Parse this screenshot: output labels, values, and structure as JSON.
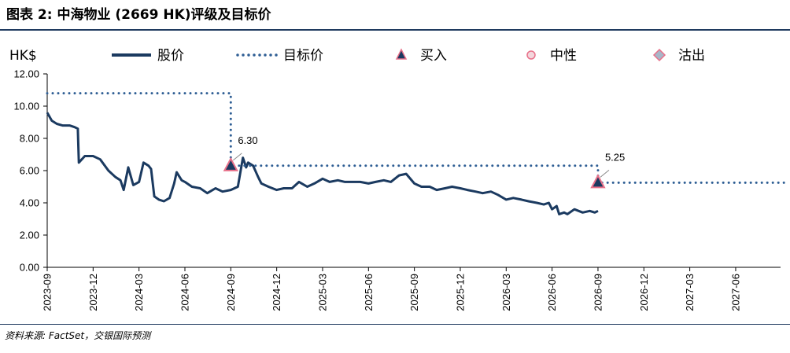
{
  "title": "图表 2: 中海物业 (2669 HK)评级及目标价",
  "source": "资料来源: FactSet，交银国际预测",
  "colors": {
    "price": "#1b3a60",
    "target": "#2e5e94",
    "marker_fill": "#a8b6c8",
    "marker_stroke": "#e8718a",
    "axis": "#000000"
  },
  "chart_data": {
    "type": "line",
    "ylabel": "HK$",
    "ylim": [
      0,
      12
    ],
    "yticks": [
      "0.00",
      "2.00",
      "4.00",
      "6.00",
      "8.00",
      "10.00",
      "12.00"
    ],
    "xlim": [
      "2023-09",
      "2027-09"
    ],
    "xticks": [
      "2023-09",
      "2023-12",
      "2024-03",
      "2024-06",
      "2024-09",
      "2024-12",
      "2025-03",
      "2025-06",
      "2025-09",
      "2025-12",
      "2026-03",
      "2026-06",
      "2026-09",
      "2026-12",
      "2027-03",
      "2027-06"
    ],
    "legend": [
      "股价",
      "目标价",
      "买入",
      "中性",
      "沽出"
    ],
    "legend_position": "top",
    "series": [
      {
        "name": "股价",
        "style": "solid",
        "x": [
          "2023-09-01",
          "2023-09-10",
          "2023-09-20",
          "2023-10-01",
          "2023-10-15",
          "2023-10-25",
          "2023-11-01",
          "2023-11-03",
          "2023-11-15",
          "2023-12-01",
          "2023-12-15",
          "2024-01-01",
          "2024-01-15",
          "2024-01-25",
          "2024-02-01",
          "2024-02-10",
          "2024-02-20",
          "2024-03-01",
          "2024-03-10",
          "2024-03-20",
          "2024-03-25",
          "2024-04-01",
          "2024-04-10",
          "2024-04-20",
          "2024-05-01",
          "2024-05-10",
          "2024-05-15",
          "2024-05-25",
          "2024-06-01",
          "2024-06-15",
          "2024-07-01",
          "2024-07-15",
          "2024-08-01",
          "2024-08-15",
          "2024-09-01",
          "2024-09-15",
          "2024-09-25",
          "2024-10-01",
          "2024-10-05",
          "2024-10-15",
          "2024-10-25",
          "2024-11-01",
          "2024-11-15",
          "2024-12-01",
          "2024-12-15",
          "2025-01-01",
          "2025-01-15",
          "2025-02-01",
          "2025-02-15",
          "2025-03-01",
          "2025-03-15",
          "2025-04-01",
          "2025-04-15",
          "2025-05-01",
          "2025-05-15",
          "2025-06-01",
          "2025-06-15",
          "2025-07-01",
          "2025-07-15",
          "2025-08-01",
          "2025-08-15",
          "2025-09-01",
          "2025-09-15",
          "2025-10-01",
          "2025-10-15",
          "2025-11-01",
          "2025-11-15",
          "2025-12-01",
          "2025-12-15",
          "2026-01-01",
          "2026-01-15",
          "2026-02-01",
          "2026-02-15",
          "2026-03-01",
          "2026-03-15",
          "2026-04-01",
          "2026-04-15",
          "2026-05-01",
          "2026-05-15",
          "2026-05-25",
          "2026-06-01",
          "2026-06-10",
          "2026-06-15",
          "2026-06-25",
          "2026-07-01",
          "2026-07-15",
          "2026-08-01",
          "2026-08-15",
          "2026-08-25",
          "2026-09-01"
        ],
        "values": [
          9.6,
          9.1,
          8.9,
          8.8,
          8.8,
          8.7,
          8.6,
          6.5,
          6.9,
          6.9,
          6.7,
          6.0,
          5.6,
          5.4,
          4.8,
          6.2,
          5.1,
          5.3,
          6.5,
          6.3,
          6.1,
          4.4,
          4.2,
          4.1,
          4.3,
          5.2,
          5.9,
          5.4,
          5.3,
          5.0,
          4.9,
          4.6,
          4.9,
          4.7,
          4.8,
          5.0,
          6.8,
          6.2,
          6.5,
          6.3,
          5.6,
          5.2,
          5.0,
          4.8,
          4.9,
          4.9,
          5.3,
          5.0,
          5.2,
          5.5,
          5.3,
          5.4,
          5.3,
          5.3,
          5.3,
          5.2,
          5.3,
          5.4,
          5.3,
          5.7,
          5.8,
          5.2,
          5.0,
          5.0,
          4.8,
          4.9,
          5.0,
          4.9,
          4.8,
          4.7,
          4.6,
          4.7,
          4.5,
          4.2,
          4.3,
          4.2,
          4.1,
          4.0,
          3.9,
          4.0,
          3.6,
          3.8,
          3.3,
          3.4,
          3.3,
          3.6,
          3.4,
          3.5,
          3.4,
          3.5
        ]
      },
      {
        "name": "目标价",
        "style": "dotted",
        "x": [
          "2023-09-01",
          "2024-09-01",
          "2024-09-01",
          "2026-09-01",
          "2026-09-01",
          "2027-09-15"
        ],
        "values": [
          10.8,
          10.8,
          6.3,
          6.3,
          5.25,
          5.25
        ]
      }
    ],
    "ratings": [
      {
        "date": "2024-09-01",
        "value": 6.3,
        "rating": "买入",
        "label": "6.30"
      },
      {
        "date": "2026-09-01",
        "value": 5.25,
        "rating": "买入",
        "label": "5.25"
      }
    ]
  }
}
